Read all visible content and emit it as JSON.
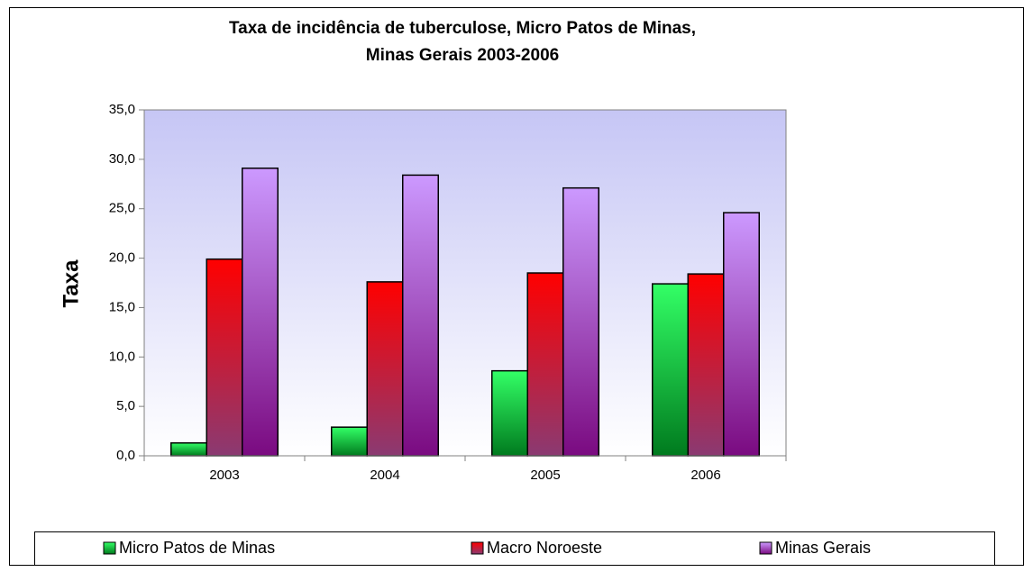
{
  "chart_data": {
    "type": "bar",
    "title": [
      "Taxa de incidência  de tuberculose, Micro  Patos de Minas,",
      "Minas Gerais 2003-2006"
    ],
    "y_label": "Taxa",
    "categories": [
      "2003",
      "2004",
      "2005",
      "2006"
    ],
    "series": [
      {
        "name": "Micro Patos de Minas",
        "color": "#33ff66",
        "values": [
          1.3,
          2.9,
          8.6,
          17.4
        ]
      },
      {
        "name": "Macro Noroeste",
        "color": "#ff0000",
        "values": [
          19.9,
          17.6,
          18.5,
          18.4
        ]
      },
      {
        "name": "Minas Gerais",
        "color": "#cc99ff",
        "values": [
          29.1,
          28.4,
          27.1,
          24.6
        ]
      }
    ],
    "ylim": [
      0,
      35
    ],
    "yticks": [
      {
        "value": 0,
        "label": "0,0"
      },
      {
        "value": 5,
        "label": "5,0"
      },
      {
        "value": 10,
        "label": "10,0"
      },
      {
        "value": 15,
        "label": "15,0"
      },
      {
        "value": 20,
        "label": "20,0"
      },
      {
        "value": 25,
        "label": "25,0"
      },
      {
        "value": 30,
        "label": "30,0"
      },
      {
        "value": 35,
        "label": "35,0"
      }
    ],
    "legend": "bottom"
  }
}
